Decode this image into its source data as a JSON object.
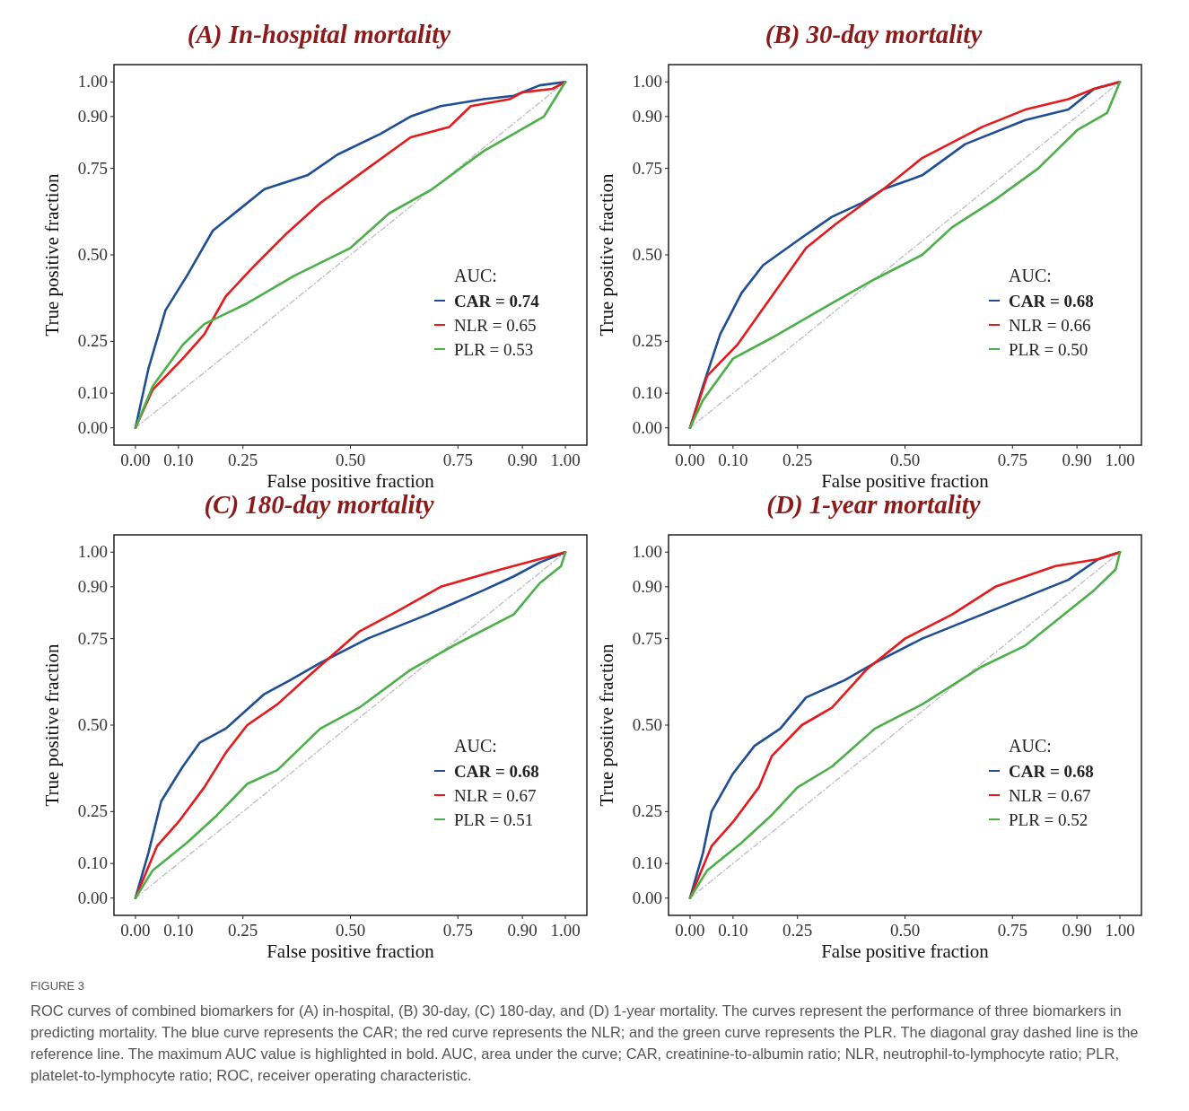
{
  "chart_data": [
    {
      "type": "line",
      "title": "(A) In-hospital mortality",
      "xlabel": "False positive fraction",
      "ylabel": "True positive fraction",
      "legend_title": "AUC:",
      "legend": "right",
      "xlim": [
        -0.05,
        1.05
      ],
      "ylim": [
        -0.05,
        1.05
      ],
      "xticks": [
        {
          "value": 0,
          "label": "0.00"
        },
        {
          "value": 0.1,
          "label": "0.10"
        },
        {
          "value": 0.25,
          "label": "0.25"
        },
        {
          "value": 0.5,
          "label": "0.50"
        },
        {
          "value": 0.75,
          "label": "0.75"
        },
        {
          "value": 0.9,
          "label": "0.90"
        },
        {
          "value": 1,
          "label": "1.00"
        }
      ],
      "yticks": [
        {
          "value": 0,
          "label": "0.00"
        },
        {
          "value": 0.1,
          "label": "0.10"
        },
        {
          "value": 0.25,
          "label": "0.25"
        },
        {
          "value": 0.5,
          "label": "0.50"
        },
        {
          "value": 0.75,
          "label": "0.75"
        },
        {
          "value": 0.9,
          "label": "0.90"
        },
        {
          "value": 1,
          "label": "1.00"
        }
      ],
      "series": [
        {
          "name": "CAR = 0.74",
          "color": "#1f4e94",
          "x": [
            0,
            0.03,
            0.07,
            0.12,
            0.18,
            0.3,
            0.4,
            0.47,
            0.57,
            0.64,
            0.71,
            0.81,
            0.88,
            0.94,
            1
          ],
          "values": [
            0,
            0.17,
            0.34,
            0.44,
            0.57,
            0.69,
            0.73,
            0.79,
            0.85,
            0.9,
            0.93,
            0.95,
            0.96,
            0.99,
            1
          ]
        },
        {
          "name": "NLR = 0.65",
          "color": "#e41a1c",
          "x": [
            0,
            0.04,
            0.11,
            0.16,
            0.21,
            0.27,
            0.35,
            0.43,
            0.54,
            0.64,
            0.73,
            0.78,
            0.87,
            0.9,
            0.97,
            1
          ],
          "values": [
            0,
            0.11,
            0.2,
            0.27,
            0.38,
            0.46,
            0.56,
            0.65,
            0.75,
            0.84,
            0.87,
            0.93,
            0.95,
            0.97,
            0.98,
            1
          ]
        },
        {
          "name": "PLR = 0.53",
          "color": "#4daf4a",
          "x": [
            0,
            0.04,
            0.11,
            0.16,
            0.26,
            0.37,
            0.5,
            0.59,
            0.69,
            0.81,
            0.88,
            0.95,
            0.98,
            1
          ],
          "values": [
            0,
            0.12,
            0.24,
            0.3,
            0.36,
            0.44,
            0.52,
            0.62,
            0.69,
            0.8,
            0.85,
            0.9,
            0.96,
            1
          ]
        },
        {
          "type": "line",
          "color": "#bdbdbd",
          "line_style": "dashed",
          "x": [
            0,
            1
          ],
          "values": [
            0,
            1
          ]
        }
      ]
    },
    {
      "type": "line",
      "title": "(B) 30-day mortality",
      "xlabel": "False positive fraction",
      "ylabel": "True positive fraction",
      "legend_title": "AUC:",
      "legend": "right",
      "xlim": [
        -0.05,
        1.05
      ],
      "ylim": [
        -0.05,
        1.05
      ],
      "xticks": [
        {
          "value": 0,
          "label": "0.00"
        },
        {
          "value": 0.1,
          "label": "0.10"
        },
        {
          "value": 0.25,
          "label": "0.25"
        },
        {
          "value": 0.5,
          "label": "0.50"
        },
        {
          "value": 0.75,
          "label": "0.75"
        },
        {
          "value": 0.9,
          "label": "0.90"
        },
        {
          "value": 1,
          "label": "1.00"
        }
      ],
      "yticks": [
        {
          "value": 0,
          "label": "0.00"
        },
        {
          "value": 0.1,
          "label": "0.10"
        },
        {
          "value": 0.25,
          "label": "0.25"
        },
        {
          "value": 0.5,
          "label": "0.50"
        },
        {
          "value": 0.75,
          "label": "0.75"
        },
        {
          "value": 0.9,
          "label": "0.90"
        },
        {
          "value": 1,
          "label": "1.00"
        }
      ],
      "series": [
        {
          "name": "CAR = 0.68",
          "color": "#1f4e94",
          "x": [
            0,
            0.03,
            0.07,
            0.12,
            0.17,
            0.26,
            0.33,
            0.4,
            0.45,
            0.54,
            0.64,
            0.78,
            0.88,
            0.94,
            1
          ],
          "values": [
            0,
            0.12,
            0.27,
            0.39,
            0.47,
            0.55,
            0.61,
            0.65,
            0.69,
            0.73,
            0.82,
            0.89,
            0.92,
            0.98,
            1
          ]
        },
        {
          "name": "NLR = 0.66",
          "color": "#e41a1c",
          "x": [
            0,
            0.04,
            0.11,
            0.19,
            0.27,
            0.34,
            0.45,
            0.54,
            0.68,
            0.78,
            0.88,
            0.94,
            1
          ],
          "values": [
            0,
            0.15,
            0.24,
            0.38,
            0.52,
            0.59,
            0.69,
            0.78,
            0.87,
            0.92,
            0.95,
            0.98,
            1
          ]
        },
        {
          "name": "PLR = 0.50",
          "color": "#4daf4a",
          "x": [
            0,
            0.03,
            0.1,
            0.19,
            0.33,
            0.43,
            0.54,
            0.61,
            0.71,
            0.81,
            0.9,
            0.97,
            1
          ],
          "values": [
            0,
            0.08,
            0.2,
            0.26,
            0.36,
            0.43,
            0.5,
            0.58,
            0.66,
            0.75,
            0.86,
            0.91,
            1
          ]
        },
        {
          "type": "line",
          "color": "#bdbdbd",
          "line_style": "dashed",
          "x": [
            0,
            1
          ],
          "values": [
            0,
            1
          ]
        }
      ]
    },
    {
      "type": "line",
      "title": "(C) 180-day mortality",
      "xlabel": "False positive fraction",
      "ylabel": "True positive fraction",
      "legend_title": "AUC:",
      "legend": "right",
      "xlim": [
        -0.05,
        1.05
      ],
      "ylim": [
        -0.05,
        1.05
      ],
      "xticks": [
        {
          "value": 0,
          "label": "0.00"
        },
        {
          "value": 0.1,
          "label": "0.10"
        },
        {
          "value": 0.25,
          "label": "0.25"
        },
        {
          "value": 0.5,
          "label": "0.50"
        },
        {
          "value": 0.75,
          "label": "0.75"
        },
        {
          "value": 0.9,
          "label": "0.90"
        },
        {
          "value": 1,
          "label": "1.00"
        }
      ],
      "yticks": [
        {
          "value": 0,
          "label": "0.00"
        },
        {
          "value": 0.1,
          "label": "0.10"
        },
        {
          "value": 0.25,
          "label": "0.25"
        },
        {
          "value": 0.5,
          "label": "0.50"
        },
        {
          "value": 0.75,
          "label": "0.75"
        },
        {
          "value": 0.9,
          "label": "0.90"
        },
        {
          "value": 1,
          "label": "1.00"
        }
      ],
      "series": [
        {
          "name": "CAR = 0.68",
          "color": "#1f4e94",
          "x": [
            0,
            0.03,
            0.06,
            0.11,
            0.15,
            0.21,
            0.3,
            0.36,
            0.43,
            0.54,
            0.68,
            0.81,
            0.88,
            0.94,
            1
          ],
          "values": [
            0,
            0.13,
            0.28,
            0.38,
            0.45,
            0.49,
            0.59,
            0.63,
            0.68,
            0.75,
            0.82,
            0.89,
            0.93,
            0.97,
            1
          ]
        },
        {
          "name": "NLR = 0.67",
          "color": "#e41a1c",
          "x": [
            0,
            0.05,
            0.1,
            0.16,
            0.21,
            0.26,
            0.33,
            0.41,
            0.52,
            0.61,
            0.71,
            0.85,
            0.94,
            1
          ],
          "values": [
            0,
            0.15,
            0.22,
            0.32,
            0.42,
            0.5,
            0.56,
            0.65,
            0.77,
            0.83,
            0.9,
            0.95,
            0.98,
            1
          ]
        },
        {
          "name": "PLR = 0.51",
          "color": "#4daf4a",
          "x": [
            0,
            0.04,
            0.12,
            0.19,
            0.26,
            0.33,
            0.43,
            0.52,
            0.64,
            0.74,
            0.88,
            0.94,
            0.99,
            1
          ],
          "values": [
            0,
            0.08,
            0.16,
            0.24,
            0.33,
            0.37,
            0.49,
            0.55,
            0.66,
            0.73,
            0.82,
            0.91,
            0.96,
            1
          ]
        },
        {
          "type": "line",
          "color": "#bdbdbd",
          "line_style": "dashed",
          "x": [
            0,
            1
          ],
          "values": [
            0,
            1
          ]
        }
      ]
    },
    {
      "type": "line",
      "title": "(D) 1-year mortality",
      "xlabel": "False positive fraction",
      "ylabel": "True positive fraction",
      "legend_title": "AUC:",
      "legend": "right",
      "xlim": [
        -0.05,
        1.05
      ],
      "ylim": [
        -0.05,
        1.05
      ],
      "xticks": [
        {
          "value": 0,
          "label": "0.00"
        },
        {
          "value": 0.1,
          "label": "0.10"
        },
        {
          "value": 0.25,
          "label": "0.25"
        },
        {
          "value": 0.5,
          "label": "0.50"
        },
        {
          "value": 0.75,
          "label": "0.75"
        },
        {
          "value": 0.9,
          "label": "0.90"
        },
        {
          "value": 1,
          "label": "1.00"
        }
      ],
      "yticks": [
        {
          "value": 0,
          "label": "0.00"
        },
        {
          "value": 0.1,
          "label": "0.10"
        },
        {
          "value": 0.25,
          "label": "0.25"
        },
        {
          "value": 0.5,
          "label": "0.50"
        },
        {
          "value": 0.75,
          "label": "0.75"
        },
        {
          "value": 0.9,
          "label": "0.90"
        },
        {
          "value": 1,
          "label": "1.00"
        }
      ],
      "series": [
        {
          "name": "CAR = 0.68",
          "color": "#1f4e94",
          "x": [
            0,
            0.03,
            0.05,
            0.1,
            0.15,
            0.21,
            0.27,
            0.36,
            0.43,
            0.54,
            0.68,
            0.78,
            0.88,
            0.95,
            1
          ],
          "values": [
            0,
            0.13,
            0.25,
            0.36,
            0.44,
            0.49,
            0.58,
            0.63,
            0.68,
            0.75,
            0.82,
            0.87,
            0.92,
            0.98,
            1
          ]
        },
        {
          "name": "NLR = 0.67",
          "color": "#e41a1c",
          "x": [
            0,
            0.05,
            0.1,
            0.16,
            0.19,
            0.26,
            0.33,
            0.41,
            0.5,
            0.61,
            0.71,
            0.85,
            0.95,
            1
          ],
          "values": [
            0,
            0.15,
            0.22,
            0.32,
            0.41,
            0.5,
            0.55,
            0.66,
            0.75,
            0.82,
            0.9,
            0.96,
            0.98,
            1
          ]
        },
        {
          "name": "PLR = 0.52",
          "color": "#4daf4a",
          "x": [
            0,
            0.04,
            0.12,
            0.19,
            0.25,
            0.33,
            0.43,
            0.54,
            0.68,
            0.78,
            0.88,
            0.94,
            0.99,
            1
          ],
          "values": [
            0,
            0.08,
            0.16,
            0.24,
            0.32,
            0.38,
            0.49,
            0.56,
            0.67,
            0.73,
            0.83,
            0.89,
            0.95,
            1
          ]
        },
        {
          "type": "line",
          "color": "#bdbdbd",
          "line_style": "dashed",
          "x": [
            0,
            1
          ],
          "values": [
            0,
            1
          ]
        }
      ],
      "annotations": [
        "FIGURE 3",
        "ROC curves of combined biomarkers for (A) in-hospital, (B) 30-day, (C) 180-day, and (D) 1-year mortality. The curves represent the performance of three biomarkers in predicting mortality. The blue curve represents the CAR; the red curve represents the NLR; and the green curve represents the PLR. The diagonal gray dashed line is the reference line. The maximum AUC value is highlighted in bold. AUC, area under the curve; CAR, creatinine-to-albumin ratio; NLR, neutrophil-to-lymphocyte ratio; PLR, platelet-to-lymphocyte ratio; ROC, receiver operating characteristic."
      ]
    }
  ]
}
